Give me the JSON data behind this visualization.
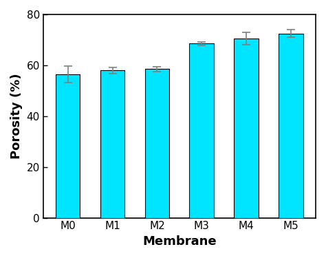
{
  "categories": [
    "M0",
    "M1",
    "M2",
    "M3",
    "M4",
    "M5"
  ],
  "values": [
    56.5,
    58.0,
    58.5,
    68.5,
    70.5,
    72.5
  ],
  "errors": [
    3.2,
    1.2,
    1.0,
    0.8,
    2.5,
    1.5
  ],
  "bar_color": "#00E5FF",
  "bar_edgecolor": "#000000",
  "title": "",
  "xlabel": "Membrane",
  "ylabel": "Porosity (%)",
  "ylim": [
    0,
    80
  ],
  "yticks": [
    0,
    20,
    40,
    60,
    80
  ],
  "bar_width": 0.55,
  "xlabel_fontsize": 13,
  "ylabel_fontsize": 13,
  "tick_fontsize": 11,
  "xlabel_fontweight": "bold",
  "ylabel_fontweight": "bold",
  "background_color": "#ffffff",
  "error_color": "gray",
  "error_capsize": 4,
  "error_linewidth": 1.2
}
